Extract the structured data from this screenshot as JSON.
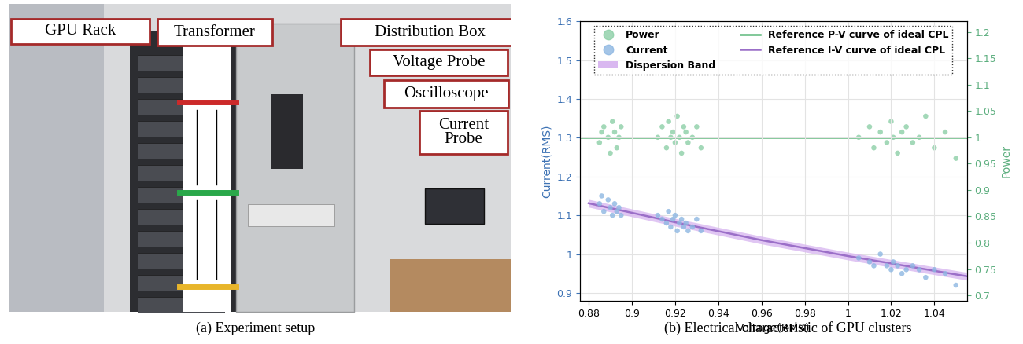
{
  "panel_a": {
    "caption": "(a) Experiment setup",
    "labels": [
      "GPU Rack",
      "Transformer",
      "Distribution Box",
      "Voltage Probe",
      "Oscilloscope",
      "Current\nProbe"
    ]
  },
  "chart_data": {
    "type": "scatter",
    "caption": "(b) Electrical characteristic of GPU clusters",
    "x_label": "Voltage(RMS)",
    "y_label": "Current(RMS)",
    "y2_label": "Power",
    "xlim": [
      0.876,
      1.055
    ],
    "xticks": [
      0.88,
      0.9,
      0.92,
      0.94,
      0.96,
      0.98,
      1,
      1.02,
      1.04
    ],
    "ylim": [
      0.88,
      1.6
    ],
    "yticks": [
      0.9,
      1,
      1.1,
      1.2,
      1.3,
      1.4,
      1.5,
      1.6
    ],
    "y2lim": [
      0.69,
      1.22
    ],
    "y2ticks": [
      0.7,
      0.75,
      0.8,
      0.85,
      0.9,
      0.95,
      1,
      1.05,
      1.1,
      1.15,
      1.2
    ],
    "grid": true,
    "legend": "upper center",
    "series": [
      {
        "name": "Power",
        "type": "scatter",
        "axis": "y2",
        "color": "#8ccfa6",
        "marker": "o",
        "x": [
          0.885,
          0.887,
          0.889,
          0.89,
          0.891,
          0.892,
          0.893,
          0.894,
          0.895,
          0.886,
          0.912,
          0.914,
          0.916,
          0.917,
          0.918,
          0.919,
          0.92,
          0.921,
          0.922,
          0.923,
          0.924,
          0.925,
          0.926,
          0.928,
          0.93,
          0.932,
          1.005,
          1.01,
          1.012,
          1.015,
          1.018,
          1.02,
          1.021,
          1.023,
          1.025,
          1.027,
          1.03,
          1.033,
          1.036,
          1.04,
          1.045,
          1.05
        ],
        "values": [
          0.99,
          1.02,
          1.0,
          0.97,
          1.03,
          1.01,
          0.98,
          1.0,
          1.02,
          1.01,
          1.0,
          1.02,
          0.98,
          1.03,
          1.0,
          1.01,
          0.99,
          1.04,
          1.0,
          0.97,
          1.02,
          1.01,
          0.99,
          1.0,
          1.02,
          0.98,
          1.0,
          1.02,
          0.98,
          1.01,
          0.99,
          1.03,
          1.0,
          0.97,
          1.01,
          1.02,
          0.99,
          1.0,
          1.04,
          0.98,
          1.01,
          0.96
        ]
      },
      {
        "name": "Current",
        "type": "scatter",
        "axis": "y",
        "color": "#8db7e2",
        "marker": "o",
        "x": [
          0.885,
          0.887,
          0.889,
          0.89,
          0.891,
          0.892,
          0.893,
          0.894,
          0.895,
          0.886,
          0.912,
          0.914,
          0.916,
          0.917,
          0.918,
          0.919,
          0.92,
          0.921,
          0.922,
          0.923,
          0.924,
          0.925,
          0.926,
          0.928,
          0.93,
          0.932,
          1.005,
          1.01,
          1.012,
          1.015,
          1.018,
          1.02,
          1.021,
          1.023,
          1.025,
          1.027,
          1.03,
          1.033,
          1.036,
          1.04,
          1.045,
          1.05
        ],
        "values": [
          1.13,
          1.11,
          1.14,
          1.12,
          1.1,
          1.13,
          1.11,
          1.12,
          1.1,
          1.15,
          1.1,
          1.09,
          1.08,
          1.11,
          1.07,
          1.09,
          1.1,
          1.06,
          1.08,
          1.09,
          1.07,
          1.08,
          1.06,
          1.07,
          1.09,
          1.06,
          0.99,
          0.98,
          0.97,
          1.0,
          0.97,
          0.96,
          0.98,
          0.97,
          0.95,
          0.96,
          0.97,
          0.96,
          0.94,
          0.96,
          0.95,
          0.92
        ]
      },
      {
        "name": "Dispersion Band",
        "type": "band",
        "axis": "y",
        "color": "#d9b8f0",
        "x": [
          0.88,
          0.92,
          0.96,
          1,
          1.04,
          1.055
        ],
        "lower": [
          1.121,
          1.072,
          1.026,
          0.985,
          0.947,
          0.933
        ],
        "upper": [
          1.141,
          1.092,
          1.046,
          1.005,
          0.967,
          0.953
        ]
      },
      {
        "name": "Reference P-V curve of ideal CPL",
        "type": "line",
        "axis": "y2",
        "color": "#5cb87a",
        "line_style": "solid",
        "x": [
          0.876,
          1.055
        ],
        "values": [
          1,
          1
        ]
      },
      {
        "name": "Reference I-V curve of ideal CPL",
        "type": "line",
        "axis": "y",
        "color": "#9b6fc8",
        "line_style": "solid",
        "x": [
          0.88,
          0.92,
          0.96,
          1,
          1.04,
          1.055
        ],
        "values": [
          1.131,
          1.082,
          1.036,
          0.995,
          0.957,
          0.943
        ]
      }
    ]
  }
}
